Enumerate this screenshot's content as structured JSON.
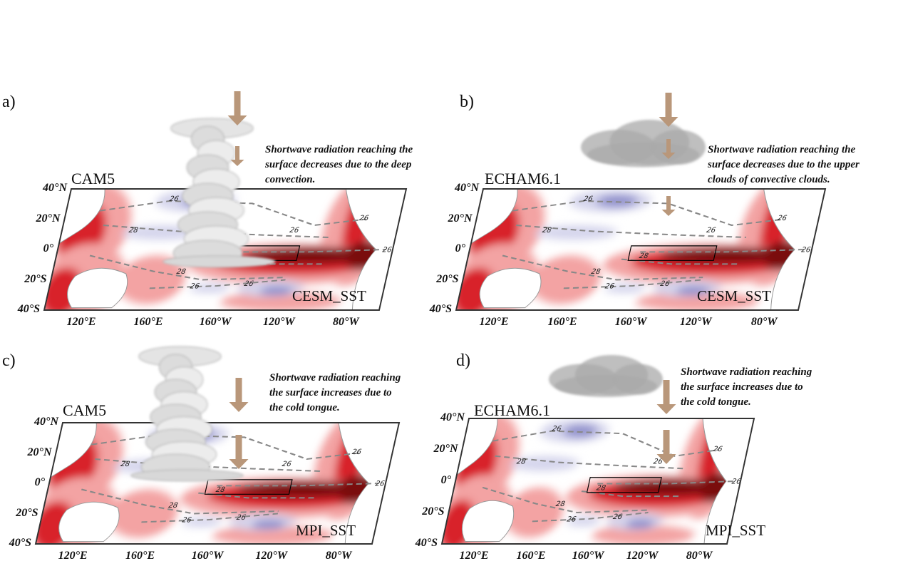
{
  "colors": {
    "warm_dark": "#7a1010",
    "warm": "#d8232a",
    "warm_light": "#f3a3a3",
    "cool": "#8f8fcc",
    "cool_light": "#d4d4ec",
    "arrow": "#b9977a",
    "contour": "#888888"
  },
  "panels": [
    {
      "label": "a)",
      "model": "CAM5",
      "sst": "CESM_SST",
      "cloud": "deep-convection-cloud",
      "note": [
        "Shortwave radiation reaching the",
        "surface decreases due to the deep",
        "convection."
      ],
      "lat": [
        "40°N",
        "20°N",
        "0°",
        "20°S",
        "40°S"
      ],
      "lon": [
        "120°E",
        "160°E",
        "160°W",
        "120°W",
        "80°W"
      ],
      "contours": [
        "26",
        "28",
        "26",
        "28",
        "28",
        "26",
        "26",
        "26",
        "26"
      ]
    },
    {
      "label": "b)",
      "model": "ECHAM6.1",
      "sst": "CESM_SST",
      "cloud": "upper-cloud",
      "note": [
        "Shortwave radiation reaching the",
        "surface decreases due to the upper",
        "clouds of convective clouds."
      ],
      "lat": [
        "40°N",
        "20°N",
        "0°",
        "20°S",
        "40°S"
      ],
      "lon": [
        "120°E",
        "160°E",
        "160°W",
        "120°W",
        "80°W"
      ],
      "contours": [
        "26",
        "28",
        "26",
        "28",
        "28",
        "26",
        "26",
        "26",
        "26"
      ]
    },
    {
      "label": "c)",
      "model": "CAM5",
      "sst": "MPI_SST",
      "cloud": "deep-convection-cloud",
      "note": [
        "Shortwave radiation reaching",
        "the surface increases due to",
        "the cold tongue."
      ],
      "lat": [
        "40°N",
        "20°N",
        "0°",
        "20°S",
        "40°S"
      ],
      "lon": [
        "120°E",
        "160°E",
        "160°W",
        "120°W",
        "80°W"
      ],
      "contours": [
        "26",
        "28",
        "26",
        "28",
        "28",
        "26",
        "26",
        "26",
        "26"
      ]
    },
    {
      "label": "d)",
      "model": "ECHAM6.1",
      "sst": "MPI_SST",
      "cloud": "upper-cloud",
      "note": [
        "Shortwave radiation reaching",
        "the surface increases due to",
        "the cold tongue."
      ],
      "lat": [
        "40°N",
        "20°N",
        "0°",
        "20°S",
        "40°S"
      ],
      "lon": [
        "120°E",
        "160°E",
        "160°W",
        "120°W",
        "80°W"
      ],
      "contours": [
        "26",
        "28",
        "26",
        "28",
        "28",
        "26",
        "26",
        "26",
        "26"
      ]
    }
  ]
}
